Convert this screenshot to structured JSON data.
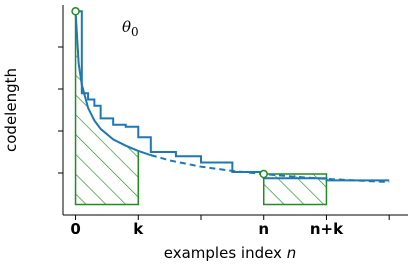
{
  "chart_data": {
    "type": "line",
    "ylabel": "codelength",
    "xlabel": "examples index",
    "xlabel_var": "n",
    "annotation": {
      "text": "θ",
      "subscript": "0"
    },
    "xlim": [
      -2,
      53
    ],
    "ylim": [
      0,
      10
    ],
    "xticks": [
      {
        "value": 0,
        "label": "0"
      },
      {
        "value": 10,
        "label": "k"
      },
      {
        "value": 20,
        "label": null
      },
      {
        "value": 30,
        "label": "n"
      },
      {
        "value": 40,
        "label": "n+k"
      },
      {
        "value": 50,
        "label": null
      }
    ],
    "yticks": [
      {
        "value": 2,
        "label": null
      },
      {
        "value": 4,
        "label": null
      },
      {
        "value": 6,
        "label": null
      },
      {
        "value": 8,
        "label": null
      }
    ],
    "series": [
      {
        "kind": "smooth",
        "color": "#1f77b4",
        "dash_start_x": 12,
        "x": [
          0,
          0.5,
          1,
          2,
          3,
          4,
          6,
          8,
          10,
          12,
          15,
          20,
          25,
          30,
          35,
          40,
          45,
          50
        ],
        "values": [
          9.7,
          7.2,
          6.2,
          5.1,
          4.5,
          4.1,
          3.6,
          3.3,
          3.05,
          2.85,
          2.6,
          2.3,
          2.1,
          1.95,
          1.82,
          1.72,
          1.64,
          1.57
        ]
      },
      {
        "kind": "step",
        "color": "#1f77b4",
        "x": [
          0,
          1,
          2,
          3,
          4,
          6,
          8,
          10,
          12,
          16,
          20,
          25,
          30,
          40,
          50
        ],
        "values": [
          9.7,
          5.8,
          5.5,
          5.2,
          4.6,
          4.3,
          4.2,
          3.7,
          3.0,
          2.8,
          2.5,
          2.05,
          1.75,
          1.65,
          1.65
        ]
      }
    ],
    "regions": [
      {
        "color": "#228b22",
        "x": [
          0,
          10
        ],
        "bottom": 0.5,
        "follows_series": 0
      },
      {
        "color": "#228b22",
        "x": [
          30,
          40
        ],
        "bottom": 0.5,
        "top": 1.95
      }
    ],
    "markers": [
      {
        "color": "#228b22",
        "x": 0,
        "y": 9.7
      },
      {
        "color": "#228b22",
        "x": 30,
        "y": 1.95
      }
    ]
  }
}
